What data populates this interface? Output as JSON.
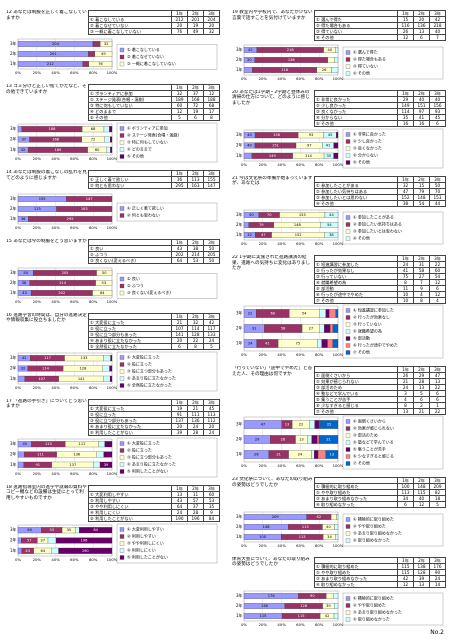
{
  "page_number": "No.2",
  "chart_colors": [
    "#9999ff",
    "#993366",
    "#ffffcc",
    "#ccffff",
    "#660066",
    "#ff8080",
    "#0066cc"
  ],
  "axis": {
    "xlim": [
      0,
      100
    ],
    "xticks": [
      {
        "value": 0,
        "label": "0%"
      },
      {
        "value": 20,
        "label": "20%"
      },
      {
        "value": 40,
        "label": "40%"
      },
      {
        "value": 60,
        "label": "60%"
      },
      {
        "value": 80,
        "label": "80%"
      },
      {
        "value": 100,
        "label": "100%"
      }
    ]
  },
  "questions": [
    {
      "title": "12 あなたは制服を正しく着こなしていますか",
      "headers": [
        "1年",
        "2年",
        "3年"
      ],
      "categories": [
        "3年",
        "2年",
        "1年"
      ],
      "rows": [
        {
          "label": "① 着こなしている",
          "values": [
            212,
            201,
            204
          ]
        },
        {
          "label": "② 着こなせていない",
          "values": [
            20,
            19,
            20
          ]
        },
        {
          "label": "③ 一概に着こなしていない",
          "values": [
            76,
            49,
            32
          ]
        }
      ]
    },
    {
      "title": "13 ゴミ分けと正しい捨てかたなど、その他できていますか",
      "headers": [
        "1年",
        "2年",
        "3年"
      ],
      "categories": [
        "3年",
        "2年",
        "1年"
      ],
      "rows": [
        {
          "label": "① ボランティアに参加",
          "values": [
            32,
            37,
            12
          ]
        },
        {
          "label": "② ステージ発表(合唱・演劇)",
          "values": [
            189,
            168,
            188
          ]
        },
        {
          "label": "③ 特に何もしていない",
          "values": [
            60,
            72,
            68
          ]
        },
        {
          "label": "④ どのままで",
          "values": [
            12,
            19,
            17
          ]
        },
        {
          "label": "⑤ その他",
          "values": [
            5,
            6,
            8
          ]
        }
      ]
    },
    {
      "title": "14 あなたは制服の着こなしの乱れを見てどのように感じますか",
      "headers": [
        "1年",
        "2年",
        "3年"
      ],
      "categories": [
        "3年",
        "2年",
        "1年"
      ],
      "rows": [
        {
          "label": "① 正しく着て欲しい",
          "values": [
            36,
            113,
            155
          ]
        },
        {
          "label": "② 何とも思わない",
          "values": [
            295,
            163,
            147
          ]
        }
      ]
    },
    {
      "title": "15 あなたは今の制服をどう思いますか",
      "headers": [
        "1年",
        "2年",
        "3年"
      ],
      "categories": [
        "3年",
        "2年",
        "1年"
      ],
      "rows": [
        {
          "label": "① 良い",
          "values": [
            43,
            38,
            50
          ]
        },
        {
          "label": "② ふつう",
          "values": [
            202,
            214,
            205
          ]
        },
        {
          "label": "③ 良くない(変えるべき)",
          "values": [
            64,
            53,
            50
          ]
        }
      ]
    },
    {
      "title": "16 進路学習の時間は、自分の進路決定や情報収集に役立ちましたか",
      "headers": [
        "1年",
        "2年",
        "3年"
      ],
      "categories": [
        "3年",
        "2年",
        "1年"
      ],
      "rows": [
        {
          "label": "① 大変役に立った",
          "values": [
            21,
            32,
            42
          ]
        },
        {
          "label": "② 役に立った",
          "values": [
            107,
            114,
            117
          ]
        },
        {
          "label": "③ 役に立つ部分もあった",
          "values": [
            141,
            128,
            133
          ]
        },
        {
          "label": "④ あまり役に立たなかった",
          "values": [
            20,
            22,
            24
          ]
        },
        {
          "label": "⑤ 全然役に立たなかった",
          "values": [
            6,
            8,
            5
          ]
        }
      ]
    },
    {
      "title": "17 「進路の手引き」についてどう思いますか",
      "headers": [
        "1年",
        "2年",
        "3年"
      ],
      "categories": [
        "3年",
        "2年",
        "1年"
      ],
      "rows": [
        {
          "label": "① 大変役に立った",
          "values": [
            19,
            21,
            45
          ]
        },
        {
          "label": "② 役に立った",
          "values": [
            91,
            111,
            113
          ]
        },
        {
          "label": "③ 役に立つ部分もあった",
          "values": [
            137,
            136,
            112
          ]
        },
        {
          "label": "④ あまり役に立たなかった",
          "values": [
            20,
            24,
            20
          ]
        },
        {
          "label": "⑤ 利用したことがない",
          "values": [
            39,
            28,
            24
          ]
        }
      ]
    },
    {
      "title": "18 進路指導室内の進学や就職の資料やコピー機などの設備は生徒にとって利用しやすいものですか",
      "headers": [
        "1年",
        "2年",
        "3年"
      ],
      "categories": [
        "3年",
        "2年",
        "1年"
      ],
      "rows": [
        {
          "label": "① 大変利用しやすい",
          "values": [
            13,
            11,
            60
          ]
        },
        {
          "label": "② 利用しやすい",
          "values": [
            43,
            57,
            53
          ]
        },
        {
          "label": "③ やや利用しにくい",
          "values": [
            64,
            37,
            35
          ]
        },
        {
          "label": "④ 利用しにくい",
          "values": [
            24,
            28,
            9
          ]
        },
        {
          "label": "⑤ 利用したことがない",
          "values": [
            190,
            196,
            84
          ]
        }
      ]
    },
    {
      "title": "19 教室内や学校内で、あなたが少ない言葉で話すことを気付けていますか",
      "headers": [
        "1年",
        "2年",
        "3年"
      ],
      "categories": [
        "3年",
        "2年",
        "1年"
      ],
      "rows": [
        {
          "label": "① 選んで得た",
          "values": [
            15,
            20,
            42
          ]
        },
        {
          "label": "② 得た場合もある",
          "values": [
            116,
            136,
            218
          ]
        },
        {
          "label": "③ 得ていない",
          "values": [
            26,
            13,
            40
          ]
        },
        {
          "label": "④ その他",
          "values": [
            12,
            6,
            7
          ]
        }
      ]
    },
    {
      "title": "20 あなたは1学期・2学期と昼休みの清掃の仕方について、どのように感じましたか",
      "headers": [
        "1年",
        "2年",
        "3年"
      ],
      "categories": [
        "3年",
        "2年",
        "1年"
      ],
      "rows": [
        {
          "label": "① 非常に良かった",
          "values": [
            29,
            40,
            40
          ]
        },
        {
          "label": "② 少し良かった",
          "values": [
            149,
            151,
            156
          ]
        },
        {
          "label": "③ 良くなかった",
          "values": [
            114,
            97,
            93
          ]
        },
        {
          "label": "④ 分からない",
          "values": [
            35,
            41,
            45
          ]
        },
        {
          "label": "⑤ その他",
          "values": [
            16,
            16,
            6
          ]
        }
      ]
    },
    {
      "title": "21 今は文化祭の準備が始まっていますが、あなたは",
      "headers": [
        "1年",
        "2年",
        "3年"
      ],
      "categories": [
        "3年",
        "2年",
        "1年"
      ],
      "rows": [
        {
          "label": "① 参加したことがある",
          "values": [
            32,
            15,
            50
          ]
        },
        {
          "label": "② 参加したい気持ちはある",
          "values": [
            47,
            79,
            70
          ]
        },
        {
          "label": "③ 参加したいとは思わない",
          "values": [
            152,
            148,
            153
          ]
        },
        {
          "label": "④ その他",
          "values": [
            38,
            54,
            44
          ]
        }
      ]
    },
    {
      "title": "22 1学期に実施された進路講演の結果、進路への気持ちに変化はありましたか",
      "headers": [
        "1年",
        "2年",
        "3年"
      ],
      "categories": [
        "3年",
        "2年",
        "1年"
      ],
      "rows": [
        {
          "label": "① 短進講習に参加した",
          "values": [
            24,
            31,
            22
          ]
        },
        {
          "label": "② 行ったが効果なし",
          "values": [
            41,
            58,
            60
          ]
        },
        {
          "label": "③ 行っていない",
          "values": [
            75,
            27,
            54
          ]
        },
        {
          "label": "④ 就職希望の為",
          "values": [
            8,
            7,
            12
          ]
        },
        {
          "label": "⑤ 部活動",
          "values": [
            11,
            9,
            6
          ]
        },
        {
          "label": "⑥ 行ったが途中でやめた",
          "values": [
            10,
            4,
            12
          ]
        },
        {
          "label": "⑦ その他",
          "values": [
            10,
            8,
            4
          ]
        }
      ]
    },
    {
      "title": "「行っていない」「途中でやめた」と答えた人、その理由は何ですか",
      "headers": [
        "1年",
        "2年",
        "3年"
      ],
      "categories": [
        "3年",
        "2年",
        "1年"
      ],
      "rows": [
        {
          "label": "① 面倒くさいから",
          "values": [
            26,
            29,
            47
          ]
        },
        {
          "label": "② 効果が感じられない",
          "values": [
            21,
            28,
            13
          ]
        },
        {
          "label": "③ 部活のため",
          "values": [
            24,
            13,
            22
          ]
        },
        {
          "label": "④ 塾などで学んでいる",
          "values": [
            3,
            5,
            6
          ]
        },
        {
          "label": "⑤ 集うことが苦手",
          "values": [
            4,
            6,
            6
          ]
        },
        {
          "label": "⑥ 少なすぎると感じる",
          "values": [
            8,
            2,
            1
          ]
        },
        {
          "label": "⑦ その他",
          "values": [
            13,
            21,
            22
          ]
        }
      ]
    },
    {
      "title": "23 文化祭について、あなたの取り組みの姿勢はどうでしたか",
      "headers": [
        "1年",
        "2年",
        "3年"
      ],
      "categories": [
        "3年",
        "2年",
        "1年"
      ],
      "rows": [
        {
          "label": "① 積極的に取り組めた",
          "values": [
            100,
            148,
            209
          ]
        },
        {
          "label": "② やや取り組めた",
          "values": [
            113,
            115,
            82
          ]
        },
        {
          "label": "③ あまり取り組めなかった",
          "values": [
            34,
            40,
            18
          ]
        },
        {
          "label": "④ 取り組めなかった",
          "values": [
            6,
            12,
            5
          ]
        }
      ]
    },
    {
      "title": "体育大会について、あなたの取り組みの姿勢はどうでしたか",
      "headers": [
        "1年",
        "2年",
        "3年"
      ],
      "categories": [
        "3年",
        "2年",
        "1年"
      ],
      "rows": [
        {
          "label": "① 積極的に取り組めた",
          "values": [
            115,
            138,
            176
          ]
        },
        {
          "label": "② やや取り組めた",
          "values": [
            115,
            128,
            90
          ]
        },
        {
          "label": "③ あまり取り組めなかった",
          "values": [
            42,
            39,
            24
          ]
        },
        {
          "label": "④ 取り組めなかった",
          "values": [
            12,
            13,
            14
          ]
        }
      ]
    }
  ]
}
